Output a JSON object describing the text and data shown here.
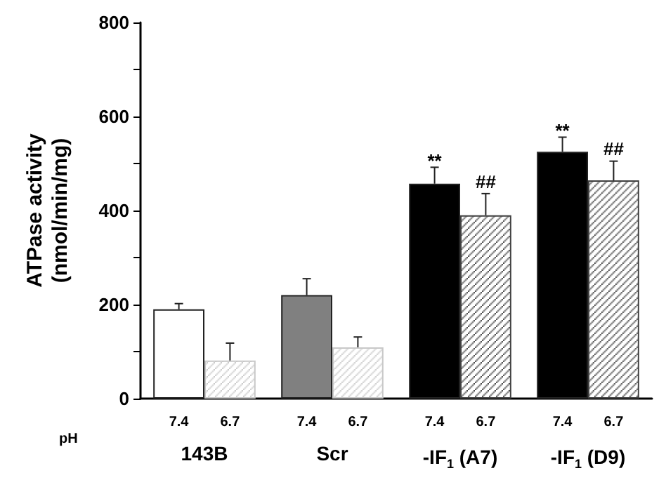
{
  "chart_data": {
    "type": "bar",
    "ylabel": "ATPase activity\n(nmol/min/mg)",
    "categories": [
      "143B",
      "Scr",
      "-IF$_{1}$ (A7)",
      "-IF$_{1}$ (D9)"
    ],
    "series": [
      {
        "name": "7.4",
        "colors": [
          "#ffffff",
          "#808080",
          "#000000",
          "#000000"
        ],
        "values": [
          190,
          220,
          457,
          525
        ],
        "errors": [
          [
            190,
            202
          ],
          [
            220,
            255
          ],
          [
            457,
            492
          ],
          [
            525,
            556
          ]
        ]
      },
      {
        "name": "6.7",
        "colors": [
          "#c8c8c8",
          "#c8c8c8",
          "#404040",
          "#404040"
        ],
        "values": [
          81,
          109,
          390,
          464
        ],
        "errors": [
          [
            81,
            118
          ],
          [
            109,
            131
          ],
          [
            390,
            436
          ],
          [
            464,
            505
          ]
        ]
      }
    ],
    "ylim": [
      0,
      800
    ],
    "yticks": [
      0,
      {
        "value": 100,
        "label": null
      },
      200,
      {
        "value": 300,
        "label": null
      },
      400,
      {
        "value": 500,
        "label": null
      },
      600,
      {
        "value": 700,
        "label": null
      },
      800
    ],
    "annotations": [
      "pH",
      {
        "text": "**",
        "x": "-IF$_{1}$ (A7)",
        "y": 457
      },
      {
        "text": "##",
        "x": "-IF$_{1}$ (A7)",
        "y": 436
      },
      {
        "text": "**",
        "x": "-IF$_{1}$ (D9)",
        "y": 525
      },
      {
        "text": "##",
        "x": "-IF$_{1}$ (D9)",
        "y": 505
      }
    ],
    "grid": false,
    "legend": false
  }
}
